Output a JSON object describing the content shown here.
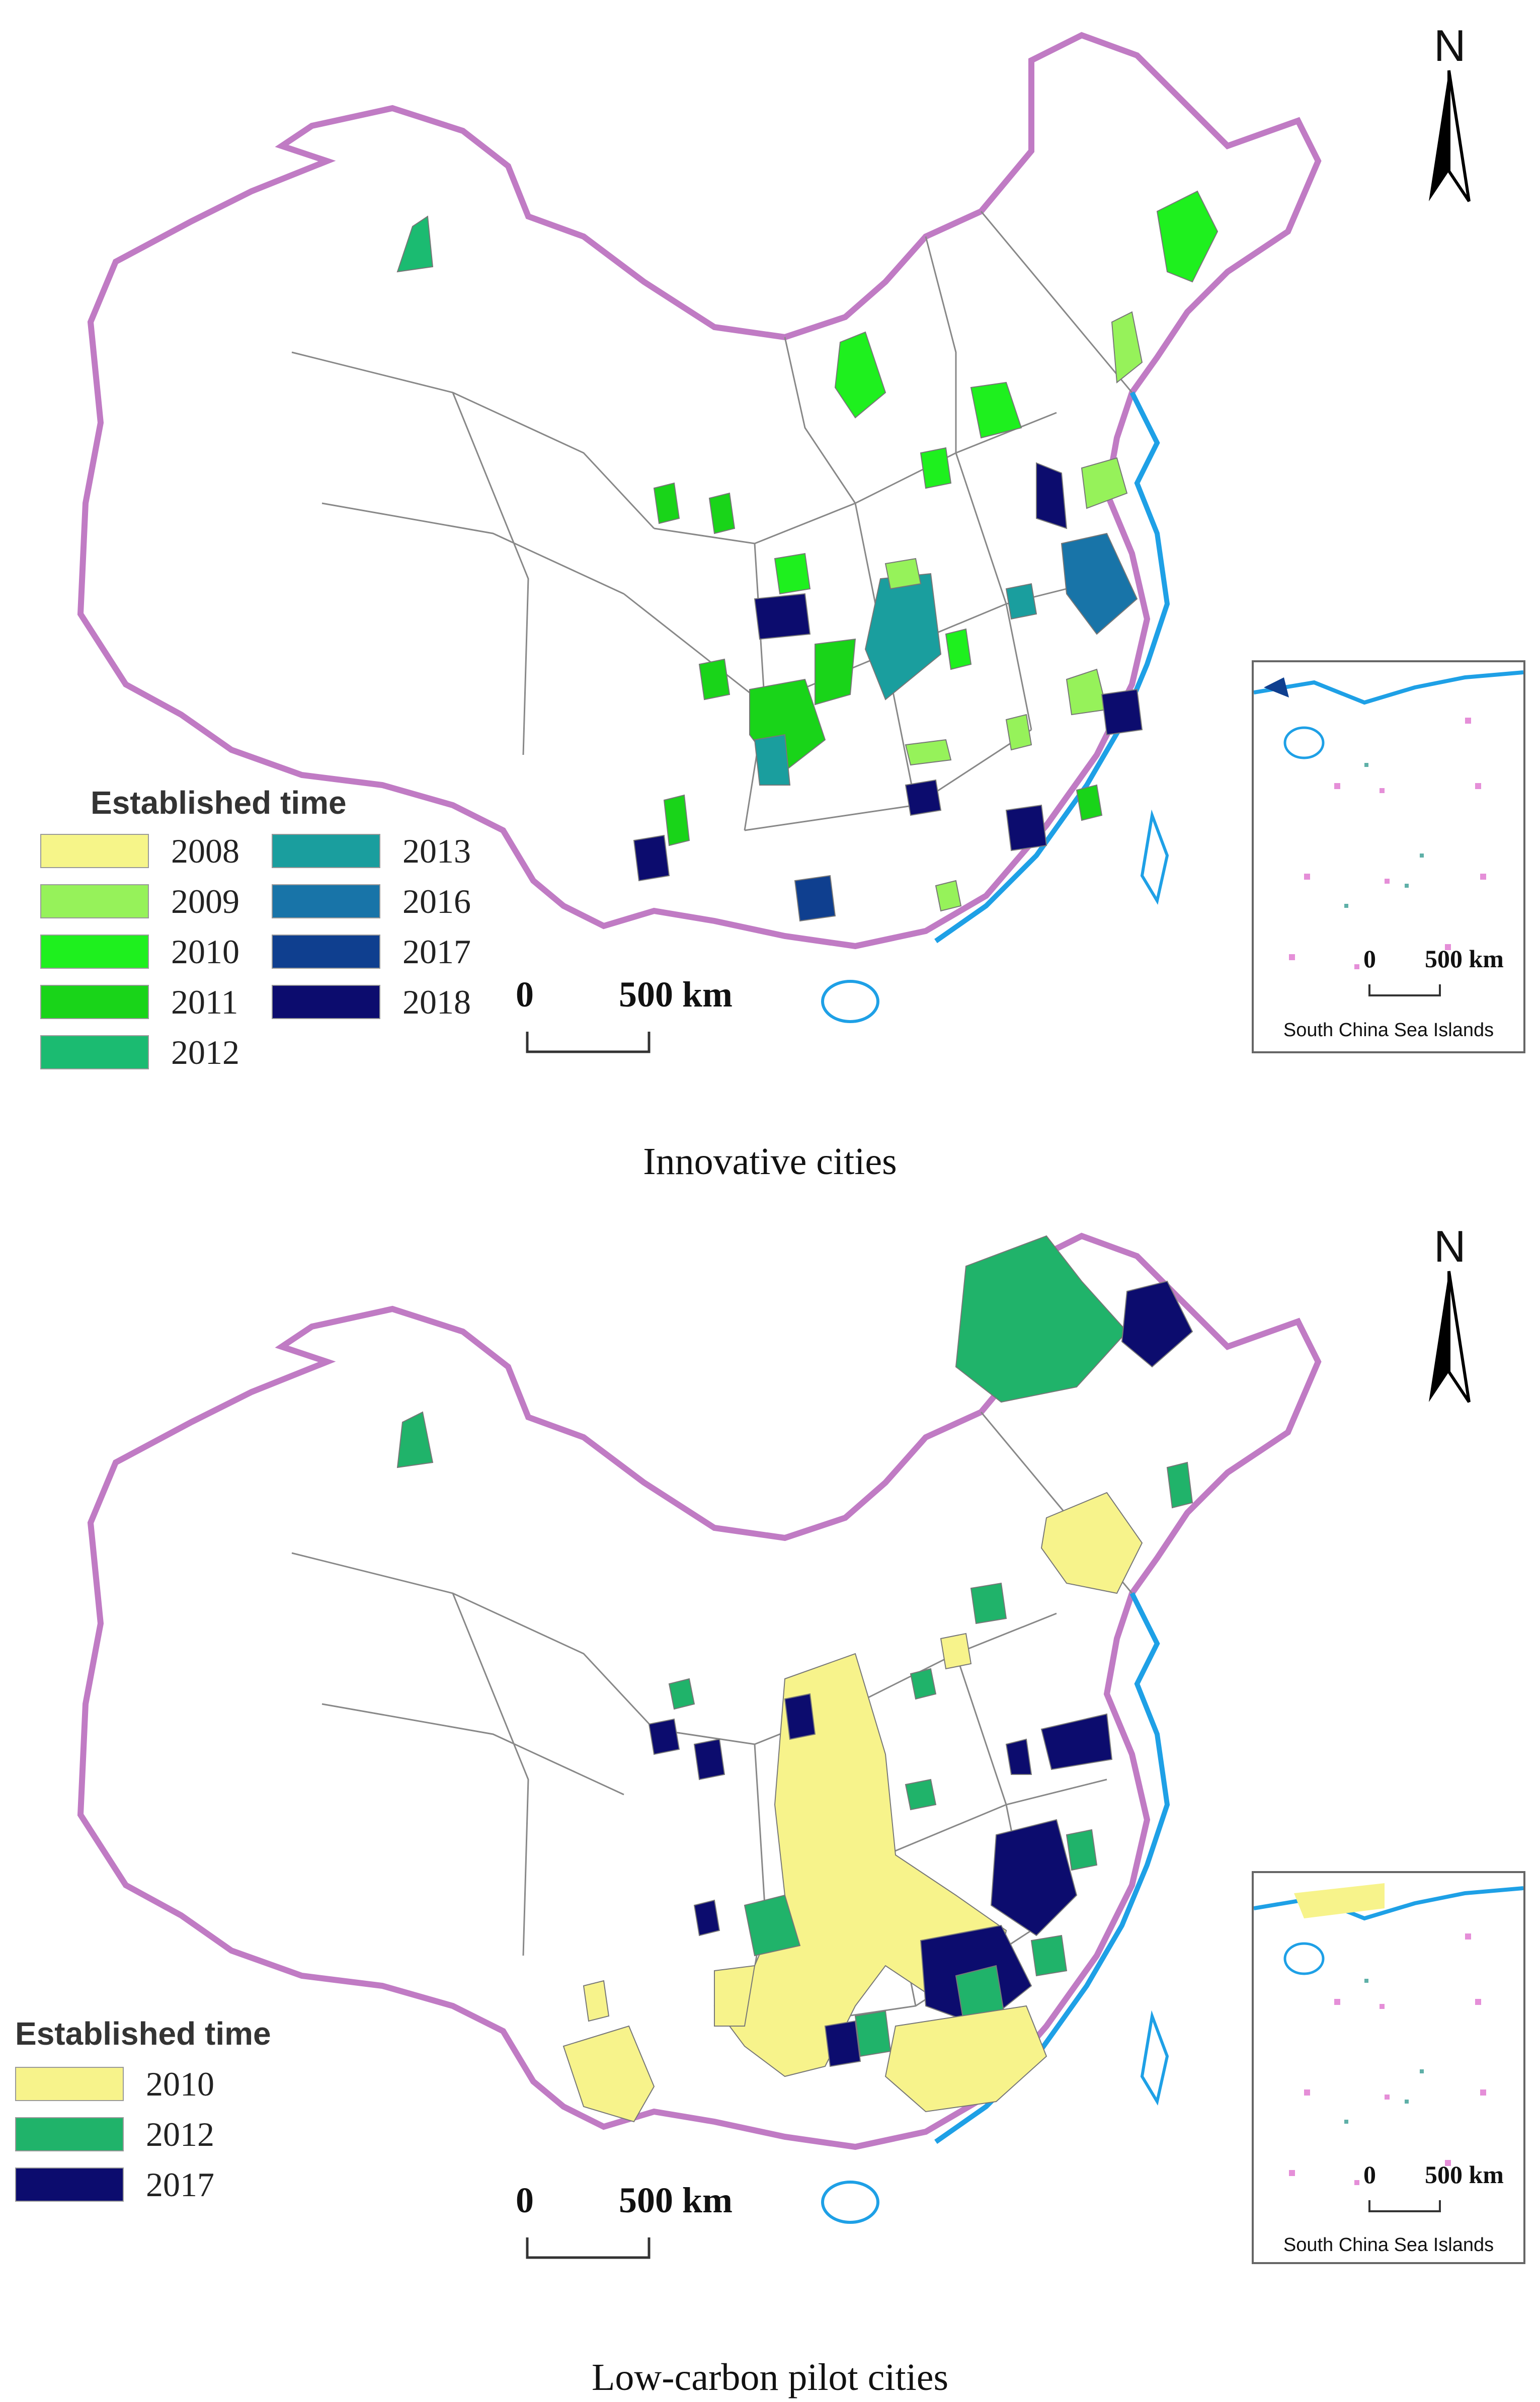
{
  "top_map": {
    "caption": "Innovative cities",
    "north_label": "N",
    "legend": {
      "title": "Established time",
      "items": [
        {
          "label": "2008",
          "color": "#f6f589"
        },
        {
          "label": "2009",
          "color": "#96f25a"
        },
        {
          "label": "2010",
          "color": "#1ef01e"
        },
        {
          "label": "2011",
          "color": "#19d419"
        },
        {
          "label": "2012",
          "color": "#1bbb71"
        },
        {
          "label": "2013",
          "color": "#1a9e9e"
        },
        {
          "label": "2016",
          "color": "#1874a8"
        },
        {
          "label": "2017",
          "color": "#0f3f8f"
        },
        {
          "label": "2018",
          "color": "#0c0c6e"
        }
      ]
    },
    "scale_bar": {
      "start": "0",
      "end": "500 km"
    },
    "inset": {
      "caption": "South China Sea Islands",
      "scale_start": "0",
      "scale_end": "500 km"
    }
  },
  "bottom_map": {
    "caption": "Low-carbon pilot cities",
    "north_label": "N",
    "legend": {
      "title": "Established time",
      "items": [
        {
          "label": "2010",
          "color": "#f7f38b"
        },
        {
          "label": "2012",
          "color": "#20b36a"
        },
        {
          "label": "2017",
          "color": "#0c0c6e"
        }
      ]
    },
    "scale_bar": {
      "start": "0",
      "end": "500 km"
    },
    "inset": {
      "caption": "South China Sea Islands",
      "scale_start": "0",
      "scale_end": "500 km"
    }
  },
  "colors": {
    "border": "#c07bc4",
    "coast": "#1ea0e6",
    "boundary": "#777777"
  }
}
